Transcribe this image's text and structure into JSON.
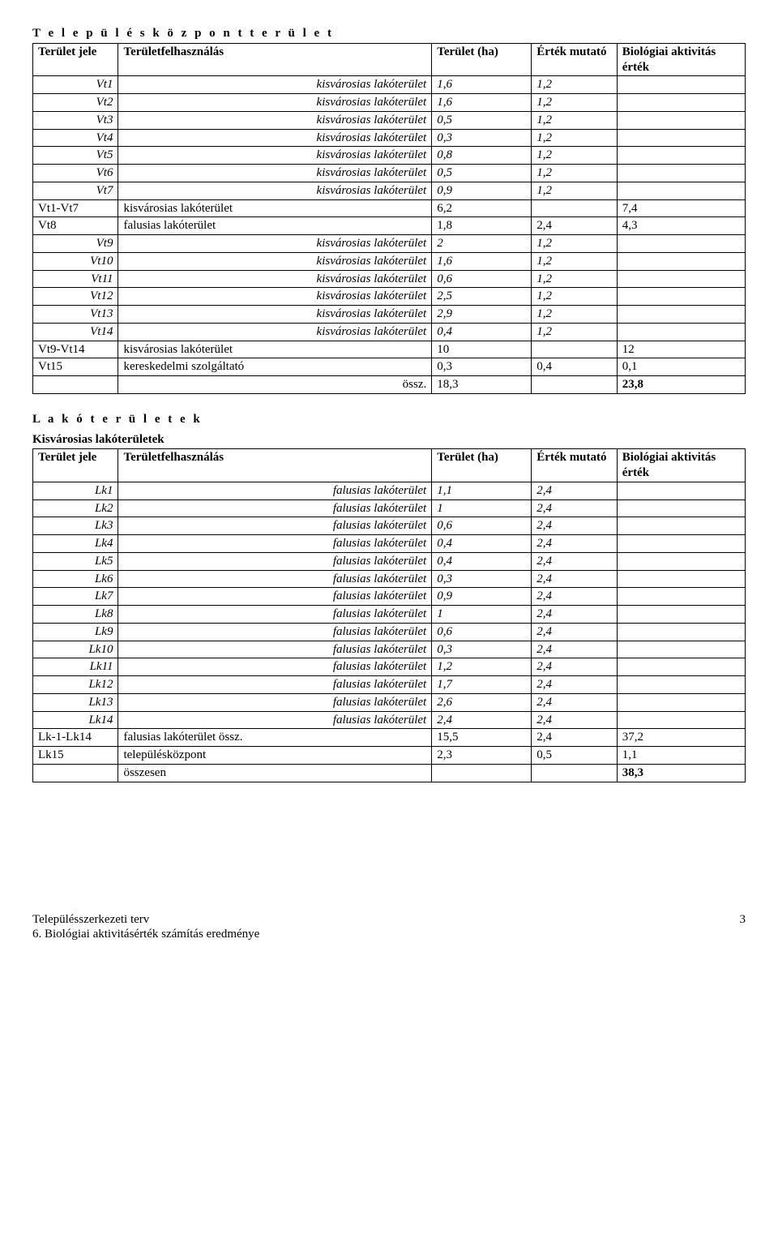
{
  "section1": {
    "title": "T e l e p ü l é s k ö z p o n t   t e r ü l e t",
    "headers": {
      "c1": "Terület jele",
      "c2": "Területfelhasználás",
      "c3": "Terület (ha)",
      "c4": "Érték mutató",
      "c5": "Biológiai aktivitás érték"
    },
    "rows": [
      {
        "code": "Vt1",
        "desc": "kisvárosias lakóterület",
        "ha": "1,6",
        "e": "1,2",
        "bio": "",
        "italic": true
      },
      {
        "code": "Vt2",
        "desc": "kisvárosias lakóterület",
        "ha": "1,6",
        "e": "1,2",
        "bio": "",
        "italic": true
      },
      {
        "code": "Vt3",
        "desc": "kisvárosias lakóterület",
        "ha": "0,5",
        "e": "1,2",
        "bio": "",
        "italic": true
      },
      {
        "code": "Vt4",
        "desc": "kisvárosias lakóterület",
        "ha": "0,3",
        "e": "1,2",
        "bio": "",
        "italic": true
      },
      {
        "code": "Vt5",
        "desc": "kisvárosias lakóterület",
        "ha": "0,8",
        "e": "1,2",
        "bio": "",
        "italic": true
      },
      {
        "code": "Vt6",
        "desc": "kisvárosias lakóterület",
        "ha": "0,5",
        "e": "1,2",
        "bio": "",
        "italic": true
      },
      {
        "code": "Vt7",
        "desc": "kisvárosias lakóterület",
        "ha": "0,9",
        "e": "1,2",
        "bio": "",
        "italic": true
      },
      {
        "code": "Vt1-Vt7",
        "desc": "kisvárosias lakóterület",
        "ha": "6,2",
        "e": "",
        "bio": "7,4",
        "italic": false,
        "left": true
      },
      {
        "code": "Vt8",
        "desc": "falusias lakóterület",
        "ha": "1,8",
        "e": "2,4",
        "bio": "4,3",
        "italic": false,
        "left": true
      },
      {
        "code": "Vt9",
        "desc": "kisvárosias lakóterület",
        "ha": "2",
        "e": "1,2",
        "bio": "",
        "italic": true
      },
      {
        "code": "Vt10",
        "desc": "kisvárosias lakóterület",
        "ha": "1,6",
        "e": "1,2",
        "bio": "",
        "italic": true
      },
      {
        "code": "Vt11",
        "desc": "kisvárosias lakóterület",
        "ha": "0,6",
        "e": "1,2",
        "bio": "",
        "italic": true
      },
      {
        "code": "Vt12",
        "desc": "kisvárosias lakóterület",
        "ha": "2,5",
        "e": "1,2",
        "bio": "",
        "italic": true
      },
      {
        "code": "Vt13",
        "desc": "kisvárosias lakóterület",
        "ha": "2,9",
        "e": "1,2",
        "bio": "",
        "italic": true
      },
      {
        "code": "Vt14",
        "desc": "kisvárosias lakóterület",
        "ha": "0,4",
        "e": "1,2",
        "bio": "",
        "italic": true
      },
      {
        "code": "Vt9-Vt14",
        "desc": "kisvárosias lakóterület",
        "ha": "10",
        "e": "",
        "bio": "12",
        "italic": false,
        "left": true
      },
      {
        "code": "Vt15",
        "desc": "kereskedelmi szolgáltató",
        "ha": "0,3",
        "e": "0,4",
        "bio": "0,1",
        "italic": false,
        "left": true
      }
    ],
    "total": {
      "label": "össz.",
      "ha": "18,3",
      "bio": "23,8"
    }
  },
  "section2": {
    "title": "L a k ó t e r ü l e t e k",
    "subtitle": "Kisvárosias lakóterületek",
    "headers": {
      "c1": "Terület jele",
      "c2": "Területfelhasználás",
      "c3": "Terület (ha)",
      "c4": "Érték mutató",
      "c5": "Biológiai aktivitás érték"
    },
    "rows": [
      {
        "code": "Lk1",
        "desc": "falusias lakóterület",
        "ha": "1,1",
        "e": "2,4",
        "bio": "",
        "italic": true
      },
      {
        "code": "Lk2",
        "desc": "falusias lakóterület",
        "ha": "1",
        "e": "2,4",
        "bio": "",
        "italic": true
      },
      {
        "code": "Lk3",
        "desc": "falusias lakóterület",
        "ha": "0,6",
        "e": "2,4",
        "bio": "",
        "italic": true
      },
      {
        "code": "Lk4",
        "desc": "falusias lakóterület",
        "ha": "0,4",
        "e": "2,4",
        "bio": "",
        "italic": true
      },
      {
        "code": "Lk5",
        "desc": "falusias lakóterület",
        "ha": "0,4",
        "e": "2,4",
        "bio": "",
        "italic": true
      },
      {
        "code": "Lk6",
        "desc": "falusias lakóterület",
        "ha": "0,3",
        "e": "2,4",
        "bio": "",
        "italic": true
      },
      {
        "code": "Lk7",
        "desc": "falusias lakóterület",
        "ha": "0,9",
        "e": "2,4",
        "bio": "",
        "italic": true
      },
      {
        "code": "Lk8",
        "desc": "falusias lakóterület",
        "ha": "1",
        "e": "2,4",
        "bio": "",
        "italic": true
      },
      {
        "code": "Lk9",
        "desc": "falusias lakóterület",
        "ha": "0,6",
        "e": "2,4",
        "bio": "",
        "italic": true
      },
      {
        "code": "Lk10",
        "desc": "falusias lakóterület",
        "ha": "0,3",
        "e": "2,4",
        "bio": "",
        "italic": true
      },
      {
        "code": "Lk11",
        "desc": "falusias lakóterület",
        "ha": "1,2",
        "e": "2,4",
        "bio": "",
        "italic": true
      },
      {
        "code": "Lk12",
        "desc": "falusias lakóterület",
        "ha": "1,7",
        "e": "2,4",
        "bio": "",
        "italic": true
      },
      {
        "code": "Lk13",
        "desc": "falusias lakóterület",
        "ha": "2,6",
        "e": "2,4",
        "bio": "",
        "italic": true
      },
      {
        "code": "Lk14",
        "desc": "falusias lakóterület",
        "ha": "2,4",
        "e": "2,4",
        "bio": "",
        "italic": true
      },
      {
        "code": "Lk-1-Lk14",
        "desc": "falusias lakóterület               össz.",
        "ha": "15,5",
        "e": "2,4",
        "bio": "37,2",
        "italic": false,
        "left": true
      },
      {
        "code": "Lk15",
        "desc": "településközpont",
        "ha": "2,3",
        "e": "0,5",
        "bio": "1,1",
        "italic": false,
        "left": true
      }
    ],
    "total": {
      "label": "összesen",
      "bio": "38,3"
    }
  },
  "footer": {
    "line1": "Településszerkezeti terv",
    "line2": "6. Biológiai aktivitásérték számítás eredménye",
    "page": "3"
  }
}
